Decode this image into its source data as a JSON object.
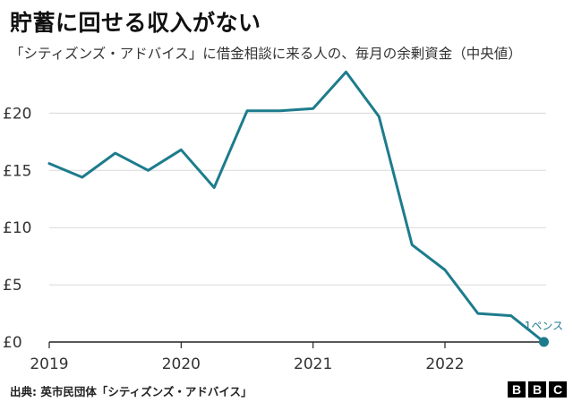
{
  "title": "貯蓄に回せる収入がない",
  "subtitle": "「シティズンズ・アドバイス」に借金相談に来る人の、毎月の余剰資金（中央値）",
  "source": "出典: 英市民団体「シティズンズ・アドバイス」",
  "logo": [
    "B",
    "B",
    "C"
  ],
  "colors": {
    "line": "#1d7c8c",
    "grid": "#d9d9d9",
    "axis": "#222222"
  },
  "chart_data": {
    "type": "line",
    "title": "貯蓄に回せる収入がない",
    "xlabel": "",
    "ylabel": "",
    "x_ticks": [
      {
        "value": 2019,
        "label": "2019"
      },
      {
        "value": 2020,
        "label": "2020"
      },
      {
        "value": 2021,
        "label": "2021"
      },
      {
        "value": 2022,
        "label": "2022"
      }
    ],
    "xlim": [
      2019,
      2022.75
    ],
    "y_ticks": [
      {
        "value": 0,
        "label": "£0"
      },
      {
        "value": 5,
        "label": "£5"
      },
      {
        "value": 10,
        "label": "£10"
      },
      {
        "value": 15,
        "label": "£15"
      },
      {
        "value": 20,
        "label": "£20"
      }
    ],
    "ylim": [
      0,
      23.5
    ],
    "grid": true,
    "series": [
      {
        "name": "",
        "x": [
          2019.0,
          2019.25,
          2019.5,
          2019.75,
          2020.0,
          2020.25,
          2020.5,
          2020.75,
          2021.0,
          2021.25,
          2021.5,
          2021.75,
          2022.0,
          2022.25,
          2022.5,
          2022.75
        ],
        "values": [
          15.6,
          14.4,
          16.5,
          15.0,
          16.8,
          13.5,
          20.2,
          20.2,
          20.4,
          23.6,
          19.7,
          8.5,
          6.3,
          2.5,
          2.3,
          0.01
        ]
      }
    ],
    "annotations": [
      {
        "text": "1ペンス",
        "x": 2022.75,
        "y": 0.01
      }
    ]
  }
}
